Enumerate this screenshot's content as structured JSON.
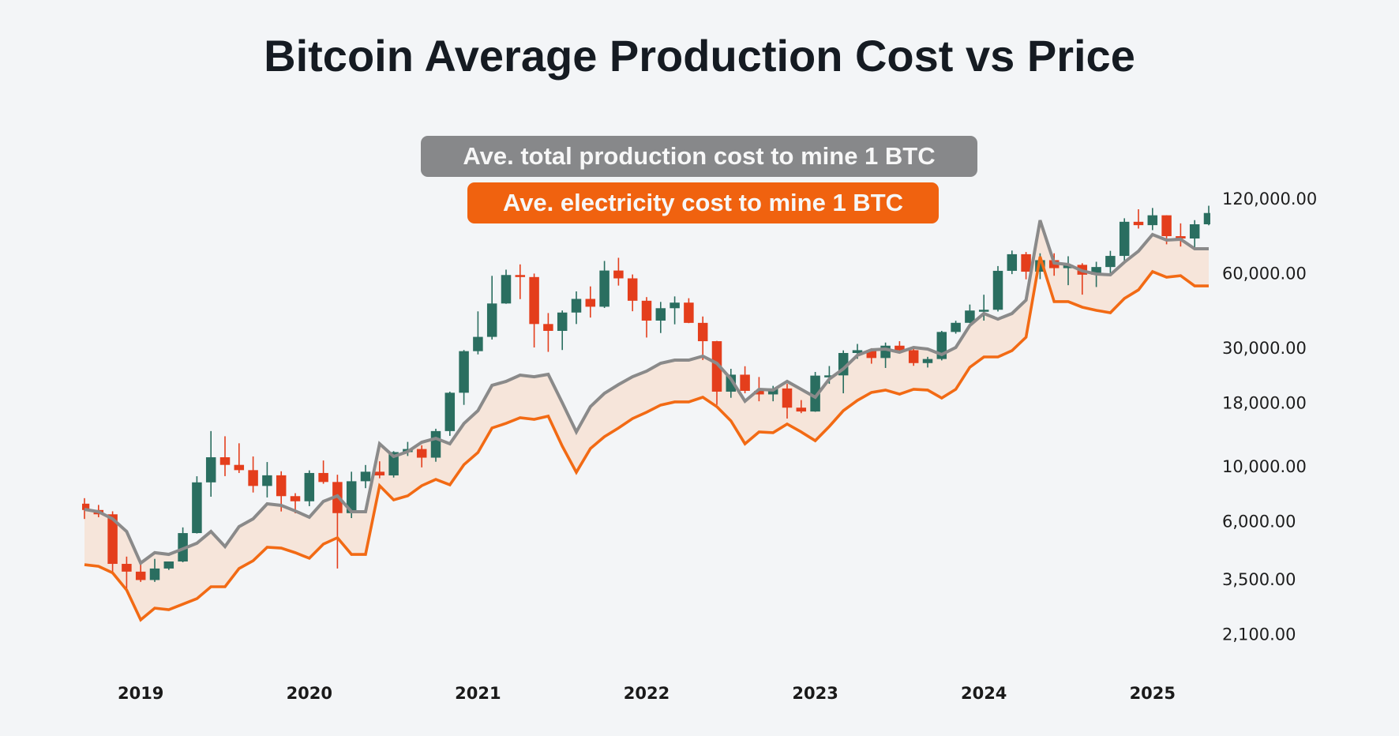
{
  "title": "Bitcoin Average Production Cost vs Price",
  "legend": {
    "total_cost_label": "Ave. total production cost to mine 1 BTC",
    "electricity_cost_label": "Ave. electricity cost to mine 1 BTC"
  },
  "colors": {
    "background": "#f3f5f7",
    "candle_up": "#2a6e60",
    "candle_down": "#e43e1c",
    "total_cost_line": "#8a8a8a",
    "electricity_cost_line": "#f26a14",
    "band_fill": "#f6e5da"
  },
  "chart_data": {
    "type": "candlestick",
    "title": "Bitcoin Average Production Cost vs Price",
    "y_scale": "log",
    "ylim": [
      1800,
      125000
    ],
    "y_axis_position": "right",
    "grid": false,
    "legend_placement": "top-center",
    "y_ticks": [
      {
        "value": 120000,
        "label": "120,000.00"
      },
      {
        "value": 60000,
        "label": "60,000.00"
      },
      {
        "value": 30000,
        "label": "30,000.00"
      },
      {
        "value": 18000,
        "label": "18,000.00"
      },
      {
        "value": 10000,
        "label": "10,000.00"
      },
      {
        "value": 6000,
        "label": "6,000.00"
      },
      {
        "value": 3500,
        "label": "3,500.00"
      },
      {
        "value": 2100,
        "label": "2,100.00"
      }
    ],
    "x_ticks": [
      {
        "date": "2019-01",
        "label": "2019"
      },
      {
        "date": "2020-01",
        "label": "2020"
      },
      {
        "date": "2021-01",
        "label": "2021"
      },
      {
        "date": "2022-01",
        "label": "2022"
      },
      {
        "date": "2023-01",
        "label": "2023"
      },
      {
        "date": "2024-01",
        "label": "2024"
      },
      {
        "date": "2025-01",
        "label": "2025"
      }
    ],
    "ohlc_fields": [
      "date",
      "open",
      "high",
      "low",
      "close"
    ],
    "candles": [
      [
        "2018-09",
        7030,
        7400,
        6100,
        6630
      ],
      [
        "2018-10",
        6630,
        6950,
        6200,
        6370
      ],
      [
        "2018-11",
        6370,
        6550,
        3650,
        4020
      ],
      [
        "2018-12",
        4020,
        4300,
        3150,
        3740
      ],
      [
        "2019-01",
        3740,
        4110,
        3400,
        3460
      ],
      [
        "2019-02",
        3460,
        4210,
        3400,
        3850
      ],
      [
        "2019-03",
        3850,
        4110,
        3800,
        4110
      ],
      [
        "2019-04",
        4110,
        5640,
        4080,
        5350
      ],
      [
        "2019-05",
        5350,
        9070,
        5330,
        8570
      ],
      [
        "2019-06",
        8570,
        13800,
        7500,
        10820
      ],
      [
        "2019-07",
        10820,
        13150,
        9080,
        10080
      ],
      [
        "2019-08",
        10080,
        12320,
        9350,
        9600
      ],
      [
        "2019-09",
        9600,
        10900,
        7800,
        8290
      ],
      [
        "2019-10",
        8290,
        10350,
        7450,
        9150
      ],
      [
        "2019-11",
        9150,
        9500,
        6540,
        7540
      ],
      [
        "2019-12",
        7540,
        7750,
        6430,
        7190
      ],
      [
        "2020-01",
        7190,
        9580,
        6870,
        9350
      ],
      [
        "2020-02",
        9350,
        10500,
        8460,
        8600
      ],
      [
        "2020-03",
        8600,
        9200,
        3850,
        6440
      ],
      [
        "2020-04",
        6440,
        9460,
        6150,
        8660
      ],
      [
        "2020-05",
        8660,
        10070,
        8120,
        9460
      ],
      [
        "2020-06",
        9460,
        10420,
        8900,
        9140
      ],
      [
        "2020-07",
        9140,
        11450,
        8960,
        11350
      ],
      [
        "2020-08",
        11350,
        12480,
        10950,
        11680
      ],
      [
        "2020-09",
        11680,
        12090,
        9850,
        10780
      ],
      [
        "2020-10",
        10780,
        14100,
        10380,
        13800
      ],
      [
        "2020-11",
        13800,
        19900,
        13200,
        19700
      ],
      [
        "2020-12",
        19700,
        29300,
        17600,
        28990
      ],
      [
        "2021-01",
        28990,
        41950,
        28130,
        33100
      ],
      [
        "2021-02",
        33100,
        58350,
        32300,
        45140
      ],
      [
        "2021-03",
        45140,
        61800,
        45000,
        58800
      ],
      [
        "2021-04",
        58800,
        64900,
        47000,
        57700
      ],
      [
        "2021-05",
        57700,
        59600,
        30000,
        37300
      ],
      [
        "2021-06",
        37300,
        41300,
        28800,
        35000
      ],
      [
        "2021-07",
        35000,
        42300,
        29300,
        41500
      ],
      [
        "2021-08",
        41500,
        50500,
        37300,
        47100
      ],
      [
        "2021-09",
        47100,
        52900,
        39600,
        43800
      ],
      [
        "2021-10",
        43800,
        67000,
        43300,
        61300
      ],
      [
        "2021-11",
        61300,
        69000,
        53300,
        57000
      ],
      [
        "2021-12",
        57000,
        59100,
        42000,
        46300
      ],
      [
        "2022-01",
        46300,
        47900,
        32900,
        38500
      ],
      [
        "2022-02",
        38500,
        45800,
        34300,
        43200
      ],
      [
        "2022-03",
        43200,
        48200,
        37200,
        45500
      ],
      [
        "2022-04",
        45500,
        47400,
        37600,
        37700
      ],
      [
        "2022-05",
        37700,
        40000,
        26700,
        31800
      ],
      [
        "2022-06",
        31800,
        31900,
        17600,
        19900
      ],
      [
        "2022-07",
        19900,
        24600,
        18800,
        23300
      ],
      [
        "2022-08",
        23300,
        25200,
        19600,
        20050
      ],
      [
        "2022-09",
        20050,
        22800,
        18200,
        19400
      ],
      [
        "2022-10",
        19400,
        21000,
        18200,
        20500
      ],
      [
        "2022-11",
        20500,
        21400,
        15500,
        17150
      ],
      [
        "2022-12",
        17150,
        18400,
        16300,
        16550
      ],
      [
        "2023-01",
        16550,
        23900,
        16500,
        23100
      ],
      [
        "2023-02",
        23100,
        25250,
        21400,
        23150
      ],
      [
        "2023-03",
        23150,
        29200,
        19600,
        28500
      ],
      [
        "2023-04",
        28500,
        31000,
        27000,
        29250
      ],
      [
        "2023-05",
        29250,
        29800,
        25800,
        27200
      ],
      [
        "2023-06",
        27200,
        31400,
        24800,
        30500
      ],
      [
        "2023-07",
        30500,
        31800,
        28900,
        29250
      ],
      [
        "2023-08",
        29250,
        30200,
        25300,
        25950
      ],
      [
        "2023-09",
        25950,
        27500,
        24900,
        26950
      ],
      [
        "2023-10",
        26950,
        35000,
        26600,
        34650
      ],
      [
        "2023-11",
        34650,
        38450,
        34100,
        37720
      ],
      [
        "2023-12",
        37720,
        44700,
        37600,
        42280
      ],
      [
        "2024-01",
        42280,
        48970,
        38500,
        42580
      ],
      [
        "2024-02",
        42580,
        63900,
        41900,
        61130
      ],
      [
        "2024-03",
        61130,
        73800,
        59300,
        71330
      ],
      [
        "2024-04",
        71330,
        72800,
        56500,
        60640
      ],
      [
        "2024-05",
        60640,
        71950,
        56600,
        67490
      ],
      [
        "2024-06",
        67490,
        71950,
        58400,
        62680
      ],
      [
        "2024-07",
        62680,
        70000,
        53500,
        64620
      ],
      [
        "2024-08",
        64620,
        65600,
        49000,
        58970
      ],
      [
        "2024-09",
        58970,
        66500,
        52600,
        63330
      ],
      [
        "2024-10",
        63330,
        73600,
        58900,
        70220
      ],
      [
        "2024-11",
        70220,
        99600,
        66800,
        96410
      ],
      [
        "2024-12",
        96410,
        108300,
        90500,
        93430
      ],
      [
        "2025-01",
        93430,
        109600,
        89200,
        102400
      ],
      [
        "2025-02",
        102400,
        102500,
        78200,
        84350
      ],
      [
        "2025-03",
        84350,
        95000,
        76600,
        82550
      ],
      [
        "2025-04",
        82550,
        97900,
        74400,
        94200
      ],
      [
        "2025-05",
        94200,
        111900,
        93300,
        104600
      ]
    ],
    "series": [
      {
        "name": "Ave. total production cost to mine 1 BTC",
        "values": [
          6670,
          6525,
          6107,
          5430,
          4050,
          4460,
          4390,
          4620,
          4870,
          5430,
          4720,
          5680,
          6107,
          7020,
          6920,
          6570,
          6200,
          7180,
          7560,
          6525,
          6525,
          12260,
          10900,
          11400,
          12440,
          12900,
          12260,
          14800,
          16680,
          21100,
          21890,
          23200,
          22860,
          23380,
          17950,
          13690,
          17310,
          19600,
          21250,
          22860,
          24080,
          25900,
          26680,
          26680,
          27680,
          25900,
          22400,
          18220,
          20340,
          20200,
          21890,
          20340,
          18900,
          22380,
          24600,
          27900,
          29340,
          29560,
          28710,
          30000,
          29560,
          28090,
          30000,
          36830,
          41130,
          39050,
          41130,
          46580,
          97700,
          65750,
          64800,
          61100,
          59350,
          58910,
          66260,
          73390,
          85650,
          81350,
          81970,
          75050,
          75050
        ]
      },
      {
        "name": "Ave. electricity cost to mine 1 BTC",
        "values": [
          3990,
          3930,
          3700,
          3155,
          2390,
          2665,
          2626,
          2765,
          2910,
          3250,
          3250,
          3850,
          4140,
          4690,
          4655,
          4460,
          4235,
          4830,
          5125,
          4390,
          4390,
          8310,
          7285,
          7560,
          8310,
          8810,
          8375,
          10100,
          11310,
          14200,
          14830,
          15620,
          15390,
          15850,
          11990,
          9410,
          11730,
          13100,
          14200,
          15500,
          16440,
          17570,
          18090,
          18090,
          18900,
          17310,
          15170,
          12260,
          13690,
          13590,
          14730,
          13690,
          12620,
          14410,
          16680,
          18350,
          19750,
          20200,
          19450,
          20340,
          20200,
          18760,
          20340,
          24960,
          27470,
          27470,
          29130,
          33000,
          69730,
          45940,
          45940,
          43620,
          42360,
          41420,
          47290,
          51210,
          60670,
          57600,
          58450,
          53120,
          53120
        ]
      }
    ]
  }
}
